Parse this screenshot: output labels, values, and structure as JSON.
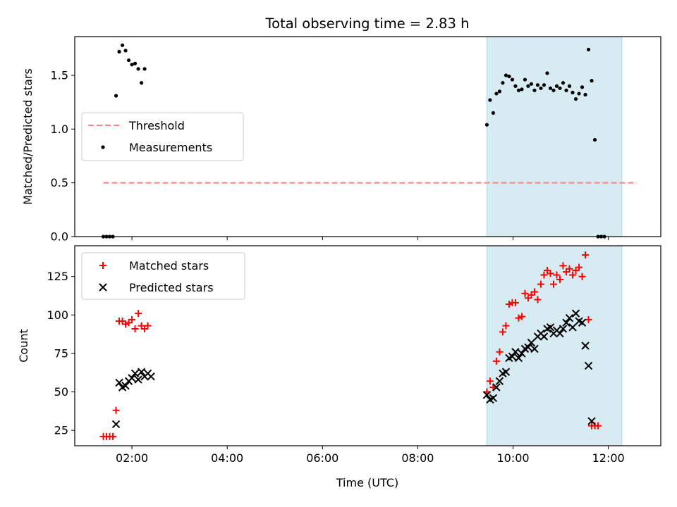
{
  "figure": {
    "title": "Total observing time = 2.83 h",
    "xlabel": "Time (UTC)"
  },
  "colors": {
    "shade": "#add8e6",
    "threshold": "#ff7f7f",
    "measurement": "#000000",
    "matched": "#ff0000",
    "predicted": "#000000"
  },
  "chart_data": [
    {
      "type": "scatter",
      "ylabel": "Matched/Predicted stars",
      "xlim": [
        "00:48",
        "13:06"
      ],
      "ylim": [
        0,
        1.86
      ],
      "xticks": [
        "02:00",
        "04:00",
        "06:00",
        "08:00",
        "10:00",
        "12:00"
      ],
      "yticks": [
        "0.0",
        "0.5",
        "1.0",
        "1.5"
      ],
      "legend_position": "center-left",
      "shaded_interval": [
        "09:27",
        "12:17"
      ],
      "threshold": {
        "name": "Threshold",
        "value": 0.5,
        "x": [
          "01:24",
          "12:36"
        ]
      },
      "series": [
        {
          "name": "Measurements",
          "x": [
            "01:24",
            "01:28",
            "01:32",
            "01:36",
            "01:40",
            "01:44",
            "01:48",
            "01:52",
            "01:56",
            "02:00",
            "02:04",
            "02:08",
            "02:12",
            "02:16",
            "02:20",
            "02:24",
            "02:28",
            "02:32",
            "09:27",
            "09:31",
            "09:35",
            "09:39",
            "09:43",
            "09:47",
            "09:51",
            "09:55",
            "09:59",
            "10:03",
            "10:07",
            "10:11",
            "10:15",
            "10:19",
            "10:23",
            "10:27",
            "10:31",
            "10:35",
            "10:39",
            "10:43",
            "10:47",
            "10:51",
            "10:55",
            "10:59",
            "11:03",
            "11:07",
            "11:11",
            "11:15",
            "11:19",
            "11:23",
            "11:27",
            "11:31",
            "11:35",
            "11:39",
            "11:43",
            "11:47",
            "11:51",
            "11:55",
            "11:59",
            "12:03",
            "12:07",
            "12:11",
            "12:15",
            "12:19",
            "12:23",
            "12:27",
            "12:31"
          ],
          "y": [
            0,
            0,
            0,
            0,
            1.31,
            1.72,
            1.78,
            1.73,
            1.64,
            1.6,
            1.61,
            1.56,
            1.43,
            1.56,
            null,
            null,
            null,
            null,
            1.04,
            1.27,
            1.15,
            1.33,
            1.35,
            1.43,
            1.5,
            1.49,
            1.46,
            1.4,
            1.36,
            1.37,
            1.46,
            1.4,
            1.42,
            1.36,
            1.41,
            1.38,
            1.41,
            1.52,
            1.38,
            1.36,
            1.4,
            1.38,
            1.43,
            1.36,
            1.4,
            1.34,
            1.28,
            1.33,
            1.39,
            1.32,
            1.74,
            1.45,
            0.9,
            0,
            0,
            0,
            null,
            null,
            null,
            null,
            null,
            null,
            null,
            null,
            null
          ]
        }
      ]
    },
    {
      "type": "scatter",
      "ylabel": "Count",
      "xlim": [
        "00:48",
        "13:06"
      ],
      "ylim": [
        15,
        145
      ],
      "xticks": [
        "02:00",
        "04:00",
        "06:00",
        "08:00",
        "10:00",
        "12:00"
      ],
      "yticks": [
        "25",
        "50",
        "75",
        "100",
        "125"
      ],
      "legend_position": "top-left",
      "shaded_interval": [
        "09:27",
        "12:17"
      ],
      "series": [
        {
          "name": "Matched stars",
          "x": [
            "01:24",
            "01:28",
            "01:32",
            "01:36",
            "01:40",
            "01:44",
            "01:48",
            "01:52",
            "01:56",
            "02:00",
            "02:04",
            "02:08",
            "02:12",
            "02:16",
            "02:20",
            "09:27",
            "09:31",
            "09:35",
            "09:39",
            "09:43",
            "09:47",
            "09:51",
            "09:55",
            "09:59",
            "10:03",
            "10:07",
            "10:11",
            "10:15",
            "10:19",
            "10:23",
            "10:27",
            "10:31",
            "10:35",
            "10:39",
            "10:43",
            "10:47",
            "10:51",
            "10:55",
            "10:59",
            "11:03",
            "11:07",
            "11:11",
            "11:15",
            "11:19",
            "11:23",
            "11:27",
            "11:31",
            "11:35",
            "11:39",
            "11:43",
            "11:47",
            "11:51",
            "11:55",
            "11:59",
            "12:03",
            "12:07",
            "12:11",
            "12:15",
            "12:19",
            "12:23",
            "12:27"
          ],
          "y": [
            21,
            21,
            21,
            21,
            38,
            96,
            96,
            94,
            95,
            97,
            91,
            101,
            93,
            91,
            93,
            50,
            57,
            53,
            70,
            76,
            89,
            93,
            107,
            108,
            108,
            98,
            99,
            114,
            111,
            113,
            115,
            110,
            120,
            126,
            129,
            127,
            120,
            126,
            123,
            132,
            128,
            130,
            126,
            129,
            131,
            125,
            139,
            97,
            28,
            28,
            28,
            null,
            null,
            null,
            null,
            null,
            null,
            null,
            null,
            null,
            null
          ]
        },
        {
          "name": "Predicted stars",
          "x": [
            "01:40",
            "01:44",
            "01:48",
            "01:52",
            "01:56",
            "02:00",
            "02:04",
            "02:08",
            "02:12",
            "02:16",
            "02:20",
            "02:24",
            "09:27",
            "09:31",
            "09:35",
            "09:39",
            "09:43",
            "09:47",
            "09:51",
            "09:55",
            "09:59",
            "10:03",
            "10:07",
            "10:11",
            "10:15",
            "10:19",
            "10:23",
            "10:27",
            "10:31",
            "10:35",
            "10:39",
            "10:43",
            "10:47",
            "10:51",
            "10:55",
            "10:59",
            "11:03",
            "11:07",
            "11:11",
            "11:15",
            "11:19",
            "11:23",
            "11:27",
            "11:31",
            "11:35",
            "11:39",
            "11:43",
            "11:47",
            "11:51",
            "11:55",
            "11:59",
            "12:03",
            "12:07",
            "12:11",
            "12:15",
            "12:19",
            "12:23",
            "12:27"
          ],
          "y": [
            29,
            56,
            53,
            54,
            57,
            59,
            62,
            58,
            63,
            60,
            62,
            60,
            48,
            45,
            46,
            53,
            57,
            62,
            63,
            72,
            73,
            76,
            72,
            75,
            78,
            79,
            82,
            78,
            86,
            88,
            86,
            91,
            92,
            88,
            90,
            88,
            91,
            95,
            98,
            92,
            101,
            96,
            95,
            80,
            67,
            31,
            null,
            null,
            null,
            null,
            null,
            null,
            null,
            null,
            null,
            null,
            null,
            null
          ]
        }
      ]
    }
  ]
}
